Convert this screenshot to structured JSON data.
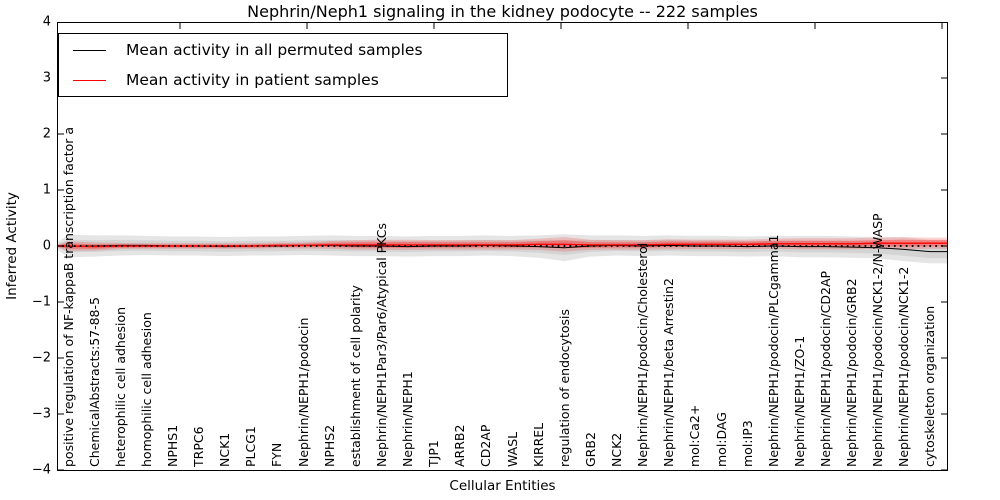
{
  "title": "Nephrin/Neph1 signaling in the kidney podocyte -- 222 samples",
  "legend": {
    "items": [
      {
        "label": "Mean activity in all permuted samples",
        "color": "#000000"
      },
      {
        "label": "Mean activity in patient samples",
        "color": "#ff0000"
      }
    ],
    "position": "upper left"
  },
  "axes": {
    "ylabel": "Inferred Activity",
    "xlabel": "Cellular Entities",
    "yticks": [
      4,
      3,
      2,
      1,
      0,
      -1,
      -2,
      -3,
      -4
    ],
    "ylim": [
      -4,
      4
    ],
    "grid": false
  },
  "chart_data": {
    "type": "line",
    "title": "Nephrin/Neph1 signaling in the kidney podocyte -- 222 samples",
    "xlabel": "Cellular Entities",
    "ylabel": "Inferred Activity",
    "ylim": [
      -4,
      4
    ],
    "legend_position": "upper left",
    "categories": [
      "positive regulation of NF-kappaB transcription factor a",
      "ChemicalAbstracts:57-88-5",
      "heterophilic cell adhesion",
      "homophilic cell adhesion",
      "NPHS1",
      "TRPC6",
      "NCK1",
      "PLCG1",
      "FYN",
      "Nephrin/NEPH1/podocin",
      "NPHS2",
      "establishment of cell polarity",
      "Nephrin/NEPH1Par3/Par6/Atypical PKCs",
      "Nephrin/NEPH1",
      "TJP1",
      "ARRB2",
      "CD2AP",
      "WASL",
      "KIRREL",
      "regulation of endocytosis",
      "GRB2",
      "NCK2",
      "Nephrin/NEPH1/podocin/Cholesterol",
      "Nephrin/NEPH1/beta Arrestin2",
      "mol:Ca2+",
      "mol:DAG",
      "mol:IP3",
      "Nephrin/NEPH1/podocin/PLCgamma1",
      "Nephrin/NEPH1/ZO-1",
      "Nephrin/NEPH1/podocin/CD2AP",
      "Nephrin/NEPH1/podocin/GRB2",
      "Nephrin/NEPH1/podocin/NCK1-2/N-WASP",
      "Nephrin/NEPH1/podocin/NCK1-2",
      "cytoskeleton organization"
    ],
    "series": [
      {
        "name": "Mean activity in all permuted samples",
        "color": "#000000",
        "values": [
          0,
          0,
          0.01,
          0.01,
          0,
          0,
          -0.01,
          0,
          0,
          0.01,
          0.01,
          0,
          0,
          -0.01,
          0,
          0,
          0.01,
          0,
          -0.01,
          -0.03,
          0,
          0.01,
          0,
          0.01,
          0,
          0,
          -0.01,
          0,
          -0.01,
          -0.01,
          -0.02,
          -0.03,
          -0.06,
          -0.1
        ],
        "band_halfwidth": [
          0.2,
          0.19,
          0.18,
          0.17,
          0.17,
          0.17,
          0.17,
          0.17,
          0.17,
          0.17,
          0.18,
          0.18,
          0.18,
          0.18,
          0.18,
          0.18,
          0.18,
          0.18,
          0.2,
          0.24,
          0.19,
          0.18,
          0.18,
          0.18,
          0.18,
          0.18,
          0.18,
          0.18,
          0.19,
          0.19,
          0.19,
          0.19,
          0.21,
          0.21
        ]
      },
      {
        "name": "Mean activity in patient samples",
        "color": "#ff0000",
        "values": [
          0,
          -0.01,
          0,
          0,
          0,
          0,
          0,
          0,
          0.01,
          0.01,
          0.02,
          0.02,
          0.02,
          0.02,
          0.02,
          0.02,
          0.02,
          0.02,
          0.03,
          0.03,
          0.02,
          0.02,
          0.02,
          0.03,
          0.03,
          0.03,
          0.03,
          0.04,
          0.04,
          0.04,
          0.04,
          0.05,
          0.05,
          0.05
        ],
        "band_halfwidth": [
          0.085,
          0.075,
          0.055,
          0.05,
          0.05,
          0.05,
          0.05,
          0.05,
          0.05,
          0.055,
          0.07,
          0.085,
          0.09,
          0.09,
          0.085,
          0.085,
          0.085,
          0.085,
          0.1,
          0.13,
          0.09,
          0.085,
          0.085,
          0.09,
          0.085,
          0.085,
          0.085,
          0.09,
          0.1,
          0.1,
          0.1,
          0.1,
          0.11,
          0.1
        ]
      },
      {
        "name": "zero-baseline",
        "color": "#000000",
        "style": "dotted",
        "constant_value": 0
      }
    ]
  }
}
